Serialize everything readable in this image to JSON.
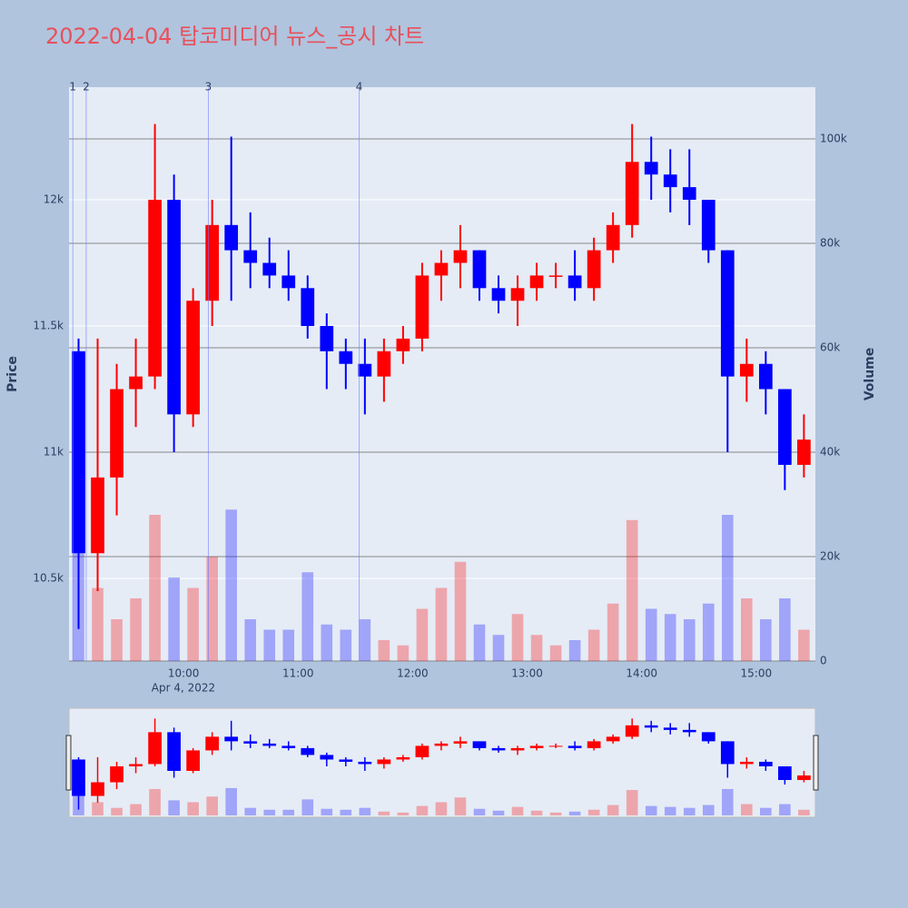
{
  "chart_data": {
    "type": "candlestick",
    "title": "2022-04-04 탑코미디어 뉴스_공시 차트",
    "y_title": "Price",
    "y2_title": "Volume",
    "x_date_label": "Apr 4, 2022",
    "x": [
      "09:00",
      "09:10",
      "09:20",
      "09:30",
      "09:40",
      "09:50",
      "10:00",
      "10:10",
      "10:20",
      "10:30",
      "10:40",
      "10:50",
      "11:00",
      "11:10",
      "11:20",
      "11:30",
      "11:40",
      "11:50",
      "12:00",
      "12:10",
      "12:20",
      "12:30",
      "12:40",
      "12:50",
      "13:00",
      "13:10",
      "13:20",
      "13:30",
      "13:40",
      "13:50",
      "14:00",
      "14:10",
      "14:20",
      "14:30",
      "14:40",
      "14:50",
      "15:00",
      "15:10",
      "15:20"
    ],
    "open": [
      11400,
      10600,
      10900,
      11250,
      11300,
      12000,
      11150,
      11600,
      11900,
      11800,
      11750,
      11700,
      11650,
      11500,
      11400,
      11350,
      11300,
      11400,
      11450,
      11700,
      11750,
      11800,
      11650,
      11600,
      11650,
      11700,
      11700,
      11650,
      11800,
      11900,
      12150,
      12100,
      12050,
      12000,
      11800,
      11300,
      11350,
      11250,
      10950
    ],
    "high": [
      11450,
      11450,
      11350,
      11450,
      12300,
      12100,
      11650,
      12000,
      12250,
      11950,
      11850,
      11800,
      11700,
      11550,
      11450,
      11450,
      11450,
      11500,
      11750,
      11800,
      11900,
      11800,
      11700,
      11700,
      11750,
      11750,
      11800,
      11850,
      11950,
      12300,
      12250,
      12200,
      12200,
      12000,
      11800,
      11450,
      11400,
      11250,
      11150
    ],
    "low": [
      10300,
      10450,
      10750,
      11100,
      11250,
      11000,
      11100,
      11500,
      11600,
      11650,
      11650,
      11600,
      11450,
      11250,
      11250,
      11150,
      11200,
      11350,
      11400,
      11600,
      11650,
      11600,
      11550,
      11500,
      11600,
      11650,
      11600,
      11600,
      11750,
      11850,
      12000,
      11950,
      11900,
      11750,
      11000,
      11200,
      11150,
      10850,
      10900
    ],
    "close": [
      10600,
      10900,
      11250,
      11300,
      12000,
      11150,
      11600,
      11900,
      11800,
      11750,
      11700,
      11650,
      11500,
      11400,
      11350,
      11300,
      11400,
      11450,
      11700,
      11750,
      11800,
      11650,
      11600,
      11650,
      11700,
      11700,
      11650,
      11800,
      11900,
      12150,
      12100,
      12050,
      12000,
      11800,
      11300,
      11350,
      11250,
      10950,
      11050
    ],
    "volume": [
      30000,
      14000,
      8000,
      12000,
      28000,
      16000,
      14000,
      20000,
      29000,
      8000,
      6000,
      6000,
      17000,
      7000,
      6000,
      8000,
      4000,
      3000,
      10000,
      14000,
      19000,
      7000,
      5000,
      9000,
      5000,
      3000,
      4000,
      6000,
      11000,
      27000,
      10000,
      9000,
      8000,
      11000,
      28000,
      12000,
      8000,
      12000,
      6000
    ],
    "increasing_color": "#ff0000",
    "decreasing_color": "#0000ff",
    "xlim": [
      "09:00",
      "15:31"
    ],
    "xticks": [
      "10:00",
      "11:00",
      "12:00",
      "13:00",
      "14:00",
      "15:00"
    ],
    "ylim": [
      10173,
      12446
    ],
    "yticks": [
      {
        "value": 10500,
        "label": "10.5k"
      },
      {
        "value": 11000,
        "label": "11k"
      },
      {
        "value": 11500,
        "label": "11.5k"
      },
      {
        "value": 12000,
        "label": "12k"
      }
    ],
    "y2lim": [
      0,
      109913
    ],
    "y2ticks": [
      0,
      {
        "value": 20000,
        "label": "20k"
      },
      {
        "value": 40000,
        "label": "40k"
      },
      {
        "value": 60000,
        "label": "60k"
      },
      {
        "value": 80000,
        "label": "80k"
      },
      {
        "value": 100000,
        "label": "100k"
      }
    ],
    "markers": [
      {
        "x": "09:02",
        "label": "1"
      },
      {
        "x": "09:09",
        "label": "2"
      },
      {
        "x": "10:13",
        "label": "3"
      },
      {
        "x": "11:32",
        "label": "4"
      }
    ],
    "grid": true
  }
}
